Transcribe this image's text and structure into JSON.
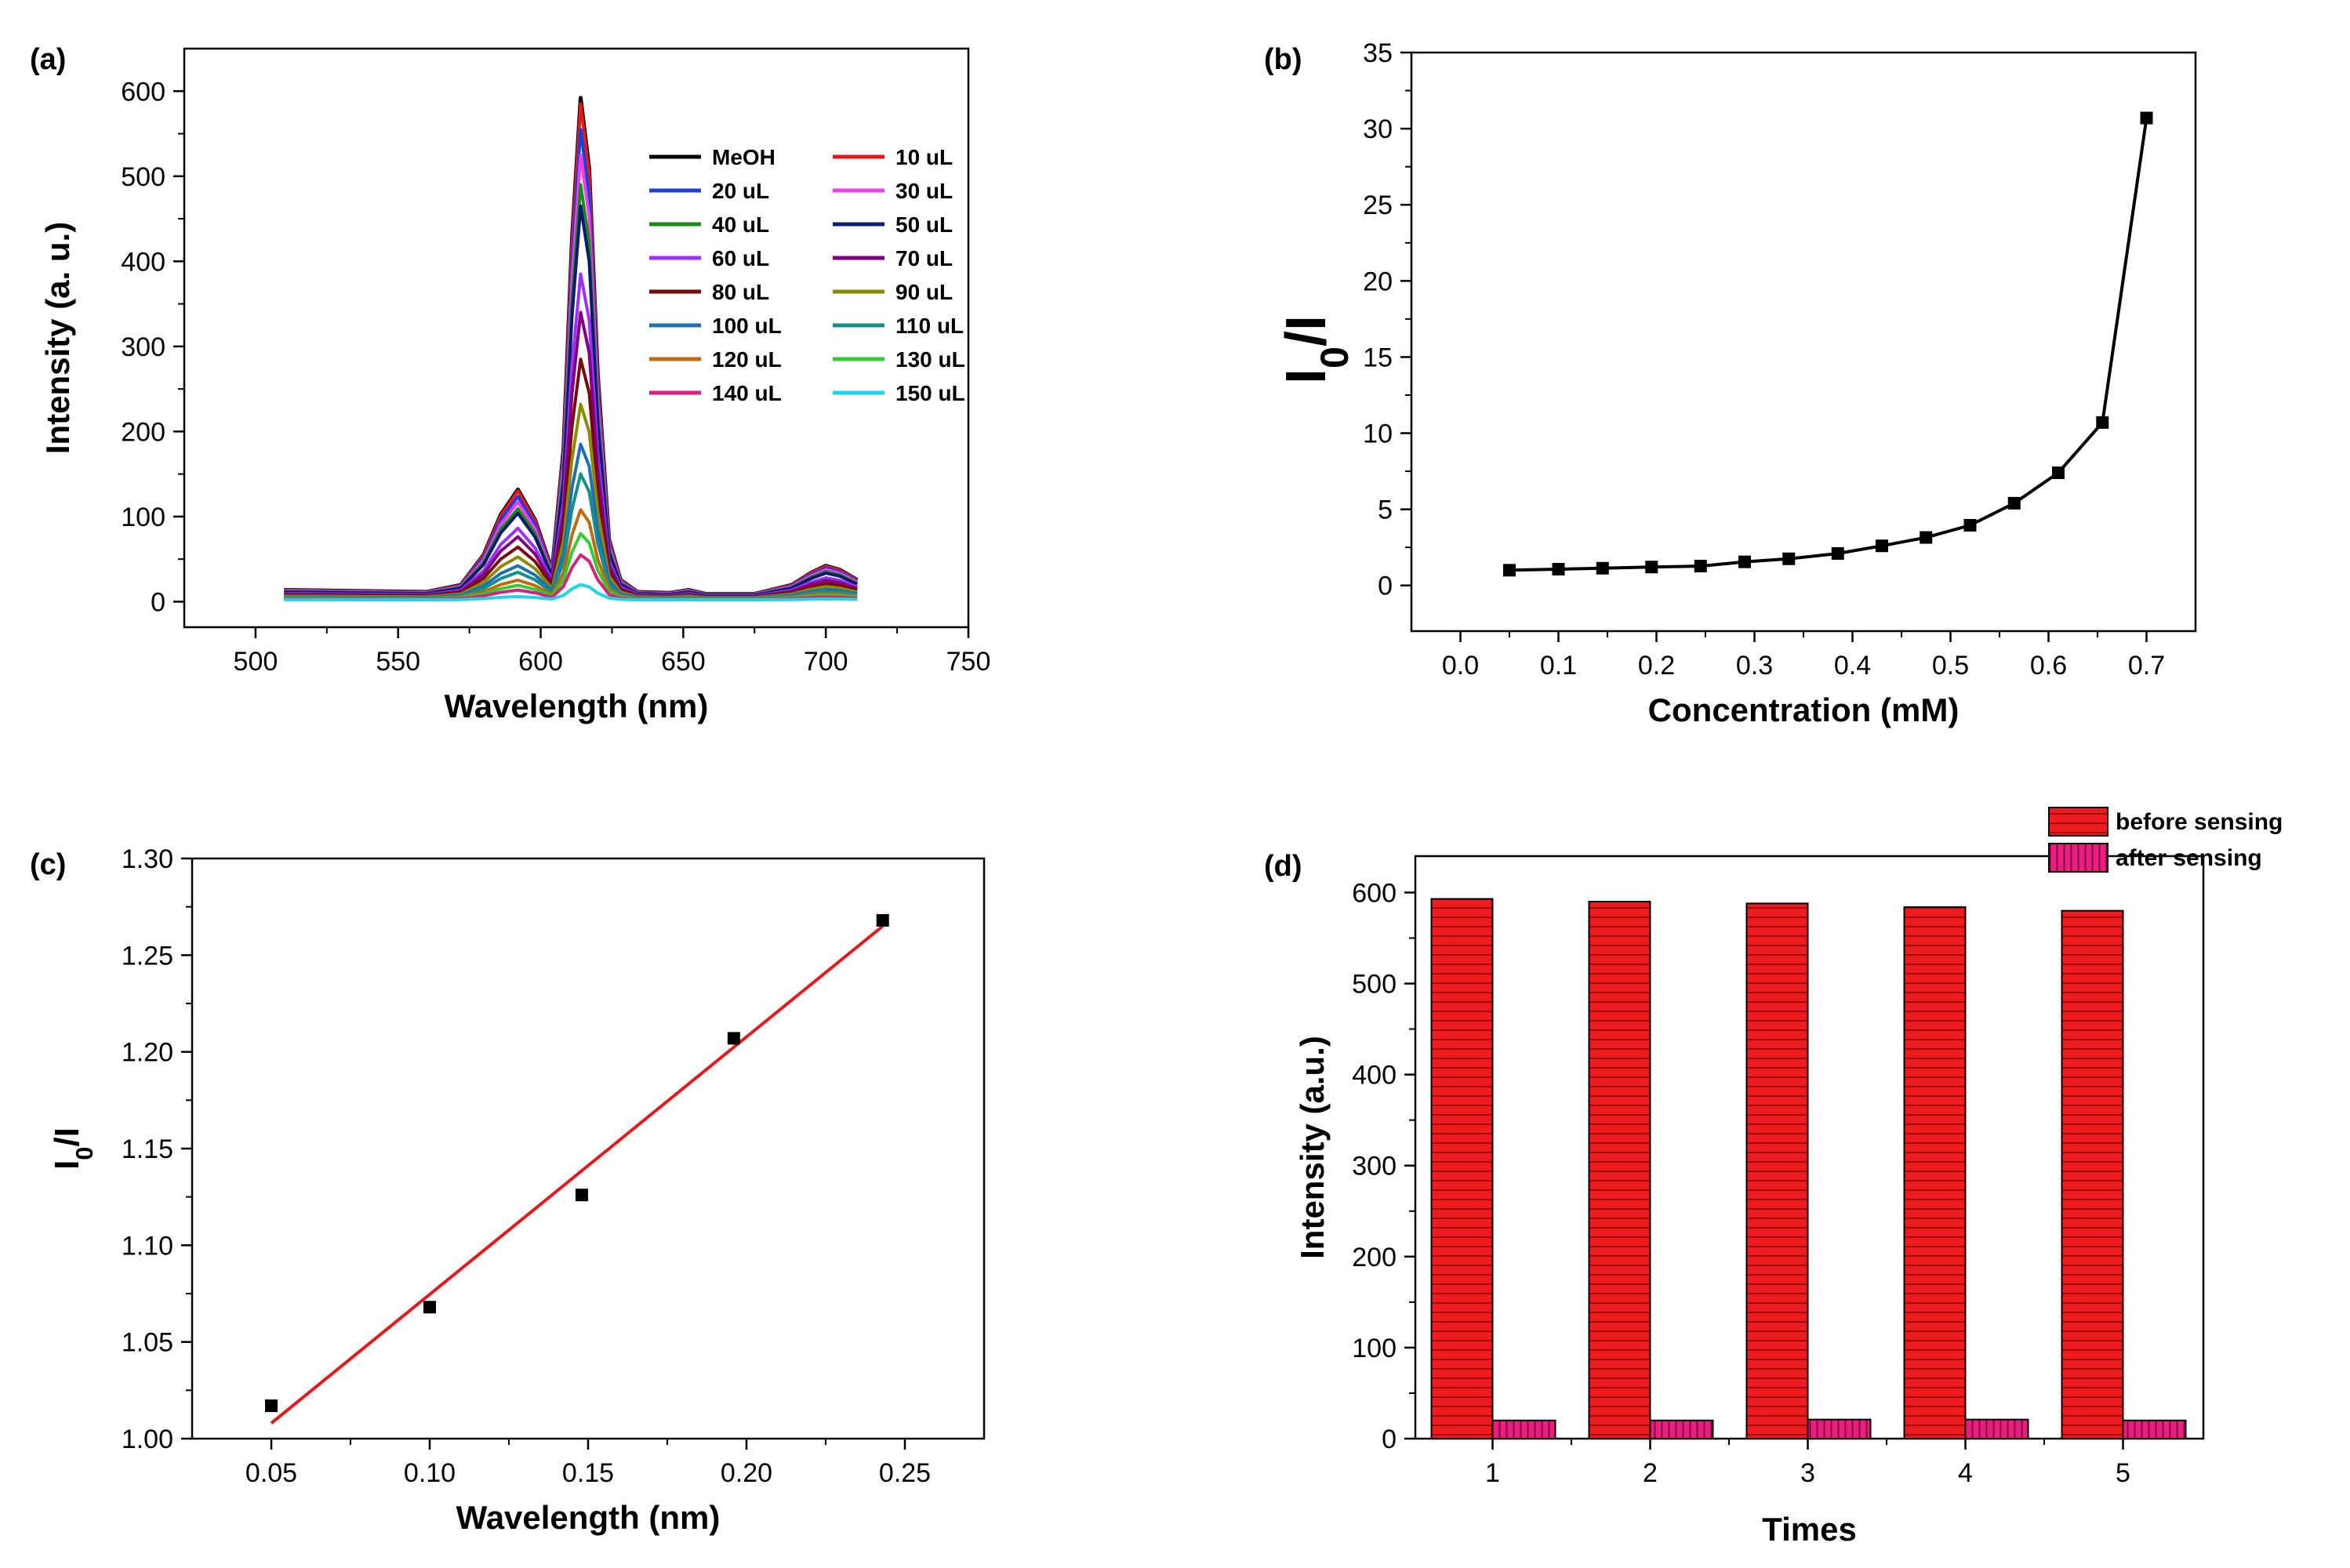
{
  "chart_data": [
    {
      "panel": "(a)",
      "type": "line",
      "xlabel": "Wavelength (nm)",
      "ylabel": "Intensity (a. u.)",
      "xlim": [
        475,
        750
      ],
      "ylim": [
        -30,
        650
      ],
      "xticks": [
        500,
        550,
        600,
        650,
        700,
        750
      ],
      "yticks": [
        0,
        100,
        200,
        300,
        400,
        500,
        600
      ],
      "legend_position": "top-right",
      "x": [
        510,
        560,
        572,
        580,
        586,
        592,
        598,
        604,
        608,
        611,
        614,
        617,
        620,
        624,
        628,
        634,
        645,
        652,
        658,
        675,
        688,
        695,
        700,
        705,
        711
      ],
      "shape": [
        0.02,
        0.016,
        0.03,
        0.09,
        0.17,
        0.22,
        0.16,
        0.06,
        0.3,
        0.72,
        1.0,
        0.86,
        0.45,
        0.12,
        0.04,
        0.016,
        0.014,
        0.02,
        0.012,
        0.012,
        0.03,
        0.055,
        0.068,
        0.06,
        0.04
      ],
      "series": [
        {
          "name": "MeOH",
          "color": "#000000",
          "peak": 592
        },
        {
          "name": "10 uL",
          "color": "#e31a1c",
          "peak": 585
        },
        {
          "name": "20 uL",
          "color": "#1f3fd6",
          "peak": 555
        },
        {
          "name": "30 uL",
          "color": "#ee3ee8",
          "peak": 525
        },
        {
          "name": "40 uL",
          "color": "#1a8a1a",
          "peak": 490
        },
        {
          "name": "50 uL",
          "color": "#0b1a6e",
          "peak": 465
        },
        {
          "name": "60 uL",
          "color": "#9b30ff",
          "peak": 385
        },
        {
          "name": "70 uL",
          "color": "#800080",
          "peak": 340
        },
        {
          "name": "80 uL",
          "color": "#7a0a0a",
          "peak": 285
        },
        {
          "name": "90 uL",
          "color": "#8b8b00",
          "peak": 232
        },
        {
          "name": "100 uL",
          "color": "#1f6fb4",
          "peak": 185
        },
        {
          "name": "110 uL",
          "color": "#12908e",
          "peak": 150
        },
        {
          "name": "120 uL",
          "color": "#c06a10",
          "peak": 108
        },
        {
          "name": "130 uL",
          "color": "#33cc33",
          "peak": 80
        },
        {
          "name": "140 uL",
          "color": "#d4237d",
          "peak": 55
        },
        {
          "name": "150 uL",
          "color": "#22d3e6",
          "peak": 20
        }
      ]
    },
    {
      "panel": "(b)",
      "type": "line",
      "xlabel": "Concentration (mM)",
      "ylabel": "I0/I",
      "ylabel_main": "I",
      "ylabel_sub": "0",
      "ylabel_rest": "/I",
      "xlim": [
        -0.05,
        0.75
      ],
      "ylim": [
        -3,
        35
      ],
      "xticks": [
        "0.0",
        "0.1",
        "0.2",
        "0.3",
        "0.4",
        "0.5",
        "0.6",
        "0.7"
      ],
      "yticks": [
        0,
        5,
        10,
        15,
        20,
        25,
        30,
        35
      ],
      "x": [
        0.05,
        0.1,
        0.145,
        0.195,
        0.245,
        0.29,
        0.335,
        0.385,
        0.43,
        0.475,
        0.52,
        0.565,
        0.61,
        0.655,
        0.7
      ],
      "y": [
        1.0,
        1.07,
        1.13,
        1.21,
        1.27,
        1.55,
        1.75,
        2.1,
        2.6,
        3.15,
        3.95,
        5.4,
        7.4,
        10.7,
        30.7
      ]
    },
    {
      "panel": "(c)",
      "type": "scatter",
      "xlabel": "Wavelength (nm)",
      "ylabel": "I0/I",
      "ylabel_main": "I",
      "ylabel_sub": "0",
      "ylabel_rest": "/I",
      "xlim": [
        0.025,
        0.275
      ],
      "ylim": [
        1.0,
        1.3
      ],
      "xticks": [
        "0.05",
        "0.10",
        "0.15",
        "0.20",
        "0.25"
      ],
      "yticks": [
        "1.00",
        "1.05",
        "1.10",
        "1.15",
        "1.20",
        "1.25",
        "1.30"
      ],
      "x": [
        0.05,
        0.1,
        0.148,
        0.196,
        0.243
      ],
      "y": [
        1.017,
        1.068,
        1.126,
        1.207,
        1.268
      ],
      "fit_line": {
        "x": [
          0.05,
          0.243
        ],
        "y": [
          1.008,
          1.265
        ],
        "color": "#e31a1c"
      }
    },
    {
      "panel": "(d)",
      "type": "bar",
      "xlabel": "Times",
      "ylabel": "Intensity (a.u.)",
      "ylim": [
        0,
        640
      ],
      "yticks": [
        0,
        100,
        200,
        300,
        400,
        500,
        600
      ],
      "categories": [
        "1",
        "2",
        "3",
        "4",
        "5"
      ],
      "legend_position": "top-right",
      "series": [
        {
          "name": "before sensing",
          "color": "#ee1c1c",
          "values": [
            593,
            590,
            588,
            584,
            580
          ]
        },
        {
          "name": "after sensing",
          "color": "#ea1e7c",
          "values": [
            20,
            20,
            21,
            21,
            20
          ]
        }
      ]
    }
  ]
}
